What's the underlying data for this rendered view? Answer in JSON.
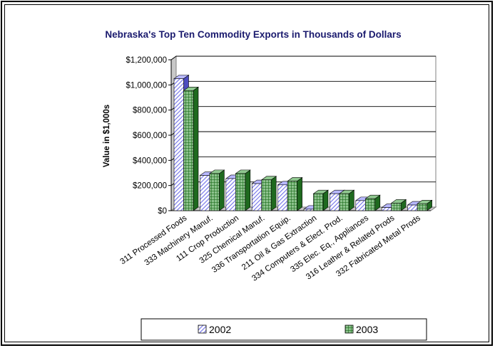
{
  "chart_data": {
    "type": "bar",
    "title": "Nebraska's Top Ten Commodity Exports in Thousands of Dollars",
    "xlabel": "",
    "ylabel": "Value in $1,000s",
    "ylim": [
      0,
      1200000
    ],
    "y_ticks": [
      "$0",
      "$200,000",
      "$400,000",
      "$600,000",
      "$800,000",
      "$1,000,000",
      "$1,200,000"
    ],
    "categories": [
      "311 Processed Foods",
      "333 Machinery Manuf.",
      "111 Crop Production",
      "325 Chemical Manuf.",
      "336 Transportation Equip.",
      "211 Oil & Gas Extraction",
      "334 Computers & Elect. Prod.",
      "335 Elec. Eq., Appliances",
      "316 Leather & Related Prods",
      "332 Fabricated Metal Prods"
    ],
    "series": [
      {
        "name": "2002",
        "values": [
          1050000,
          280000,
          255000,
          215000,
          205000,
          12000,
          135000,
          80000,
          25000,
          45000
        ]
      },
      {
        "name": "2003",
        "values": [
          955000,
          295000,
          295000,
          245000,
          235000,
          135000,
          135000,
          95000,
          60000,
          55000
        ]
      }
    ],
    "grid": true,
    "legend_position": "bottom",
    "colors": {
      "series_2002": "#8080ff",
      "series_2003": "#2e8b2e",
      "plot_background": "#ffffff",
      "title": "#1a1a6e"
    }
  }
}
